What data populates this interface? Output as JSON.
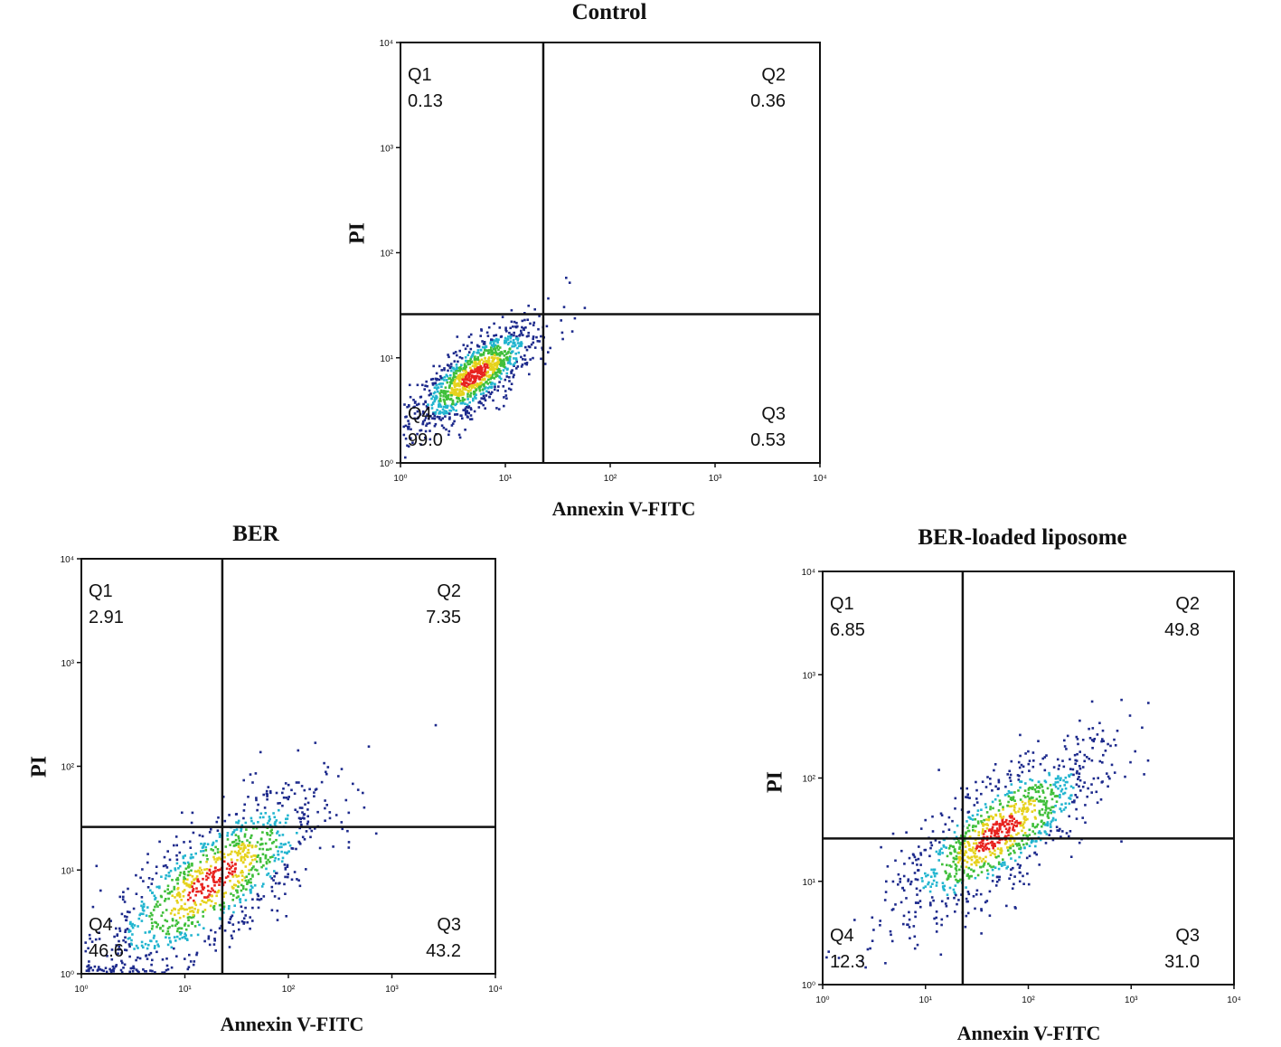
{
  "chart_data": [
    {
      "type": "scatter",
      "title": "Control",
      "xlabel": "Annexin V-FITC",
      "ylabel": "PI",
      "scale": "log",
      "xlim": [
        1,
        10000
      ],
      "ylim": [
        1,
        10000
      ],
      "x_ticks": [
        "10⁰",
        "10¹",
        "10²",
        "10³",
        "10⁴"
      ],
      "y_ticks": [
        "10⁰",
        "10¹",
        "10²",
        "10³",
        "10⁴"
      ],
      "gate": {
        "x": 23,
        "y": 26
      },
      "quadrants": [
        {
          "name": "Q1",
          "value": "0.13"
        },
        {
          "name": "Q2",
          "value": "0.36"
        },
        {
          "name": "Q3",
          "value": "0.53"
        },
        {
          "name": "Q4",
          "value": "99.0"
        }
      ],
      "population": {
        "center_x": 5,
        "center_y": 7,
        "spread": 0.3
      }
    },
    {
      "type": "scatter",
      "title": "BER",
      "xlabel": "Annexin V-FITC",
      "ylabel": "PI",
      "scale": "log",
      "xlim": [
        1,
        10000
      ],
      "ylim": [
        1,
        10000
      ],
      "x_ticks": [
        "10⁰",
        "10¹",
        "10²",
        "10³",
        "10⁴"
      ],
      "y_ticks": [
        "10⁰",
        "10¹",
        "10²",
        "10³",
        "10⁴"
      ],
      "gate": {
        "x": 23,
        "y": 26
      },
      "quadrants": [
        {
          "name": "Q1",
          "value": "2.91"
        },
        {
          "name": "Q2",
          "value": "7.35"
        },
        {
          "name": "Q3",
          "value": "43.2"
        },
        {
          "name": "Q4",
          "value": "46.6"
        }
      ],
      "population": {
        "center_x": 18,
        "center_y": 8,
        "spread": 0.55
      }
    },
    {
      "type": "scatter",
      "title": "BER-loaded liposome",
      "xlabel": "Annexin V-FITC",
      "ylabel": "PI",
      "scale": "log",
      "xlim": [
        1,
        10000
      ],
      "ylim": [
        1,
        10000
      ],
      "x_ticks": [
        "10⁰",
        "10¹",
        "10²",
        "10³",
        "10⁴"
      ],
      "y_ticks": [
        "10⁰",
        "10¹",
        "10²",
        "10³",
        "10⁴"
      ],
      "gate": {
        "x": 23,
        "y": 26
      },
      "quadrants": [
        {
          "name": "Q1",
          "value": "6.85"
        },
        {
          "name": "Q2",
          "value": "49.8"
        },
        {
          "name": "Q3",
          "value": "31.0"
        },
        {
          "name": "Q4",
          "value": "12.3"
        }
      ],
      "population": {
        "center_x": 50,
        "center_y": 30,
        "spread": 0.5
      }
    }
  ]
}
